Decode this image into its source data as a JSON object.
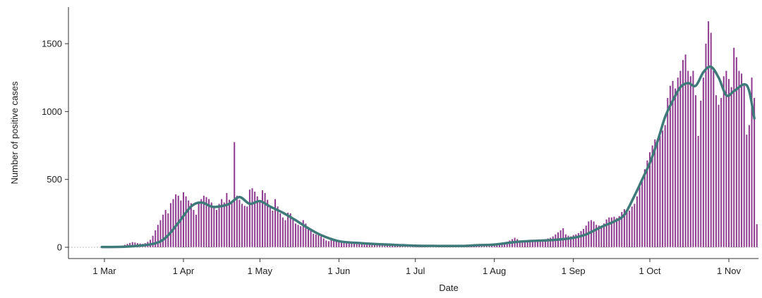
{
  "chart_data": {
    "type": "bar",
    "title": "",
    "xlabel": "Date",
    "ylabel": "Number of positive cases",
    "ylim": [
      0,
      1750
    ],
    "yticks": [
      0,
      500,
      1000,
      1500
    ],
    "ytick_labels": [
      "0",
      "500",
      "1000",
      "1500"
    ],
    "xlim": [
      "2020-02-24",
      "2020-11-12"
    ],
    "xticks": [
      "2020-03-01",
      "2020-04-01",
      "2020-05-01",
      "2020-06-01",
      "2020-07-01",
      "2020-08-01",
      "2020-09-01",
      "2020-10-01",
      "2020-11-01"
    ],
    "xtick_labels": [
      "1 Mar",
      "1 Apr",
      "1 May",
      "1 Jun",
      "1 Jul",
      "1 Aug",
      "1 Sep",
      "1 Oct",
      "1 Nov"
    ],
    "grid": false,
    "bar_color": "#8e3a8f",
    "line_color": "#3f7a7a",
    "series": [
      {
        "kind": "bar",
        "x_start": "2020-02-29",
        "values": [
          2,
          2,
          3,
          2,
          3,
          4,
          6,
          8,
          12,
          18,
          25,
          32,
          38,
          35,
          30,
          28,
          25,
          30,
          40,
          55,
          85,
          125,
          165,
          200,
          240,
          275,
          250,
          325,
          355,
          390,
          380,
          345,
          405,
          375,
          345,
          325,
          275,
          240,
          325,
          355,
          380,
          370,
          355,
          330,
          300,
          275,
          320,
          355,
          330,
          400,
          350,
          325,
          775,
          380,
          350,
          320,
          305,
          300,
          425,
          435,
          410,
          375,
          345,
          420,
          400,
          350,
          305,
          270,
          355,
          300,
          250,
          220,
          200,
          255,
          250,
          215,
          175,
          165,
          155,
          200,
          175,
          150,
          130,
          100,
          95,
          105,
          80,
          65,
          50,
          45,
          70,
          60,
          50,
          40,
          38,
          35,
          32,
          30,
          28,
          28,
          27,
          25,
          24,
          22,
          25,
          22,
          20,
          18,
          20,
          22,
          25,
          24,
          22,
          25,
          22,
          22,
          20,
          18,
          16,
          14,
          12,
          12,
          12,
          11,
          10,
          10,
          10,
          10,
          10,
          10,
          12,
          10,
          10,
          8,
          10,
          12,
          10,
          12,
          10,
          12,
          12,
          14,
          14,
          12,
          12,
          14,
          15,
          14,
          14,
          14,
          15,
          16,
          18,
          20,
          22,
          25,
          28,
          30,
          35,
          40,
          50,
          60,
          70,
          60,
          50,
          45,
          42,
          50,
          48,
          42,
          45,
          45,
          50,
          55,
          60,
          65,
          70,
          80,
          95,
          110,
          125,
          140,
          95,
          85,
          80,
          90,
          95,
          105,
          120,
          135,
          160,
          190,
          200,
          190,
          165,
          160,
          150,
          175,
          205,
          220,
          220,
          225,
          215,
          230,
          260,
          280,
          260,
          270,
          300,
          320,
          375,
          460,
          500,
          575,
          640,
          700,
          750,
          795,
          780,
          820,
          860,
          900,
          1100,
          1190,
          1225,
          1170,
          1250,
          1300,
          1380,
          1420,
          1300,
          1260,
          1300,
          1120,
          820,
          1080,
          1250,
          1500,
          1665,
          1580,
          1300,
          1120,
          1050,
          1100,
          1260,
          1300,
          1240,
          1180,
          1470,
          1400,
          1300,
          1280,
          1190,
          830,
          900,
          1250,
          1100,
          170
        ]
      },
      {
        "kind": "line",
        "x": [
          "2020-02-29",
          "2020-03-10",
          "2020-03-20",
          "2020-03-25",
          "2020-03-30",
          "2020-04-04",
          "2020-04-08",
          "2020-04-12",
          "2020-04-15",
          "2020-04-19",
          "2020-04-23",
          "2020-04-27",
          "2020-05-01",
          "2020-05-05",
          "2020-05-10",
          "2020-05-15",
          "2020-05-20",
          "2020-05-25",
          "2020-06-01",
          "2020-06-10",
          "2020-06-20",
          "2020-07-01",
          "2020-07-10",
          "2020-07-20",
          "2020-07-25",
          "2020-08-01",
          "2020-08-10",
          "2020-08-20",
          "2020-08-25",
          "2020-09-01",
          "2020-09-06",
          "2020-09-12",
          "2020-09-17",
          "2020-09-21",
          "2020-09-25",
          "2020-09-28",
          "2020-10-01",
          "2020-10-04",
          "2020-10-07",
          "2020-10-10",
          "2020-10-13",
          "2020-10-16",
          "2020-10-19",
          "2020-10-22",
          "2020-10-25",
          "2020-10-28",
          "2020-10-31",
          "2020-11-03",
          "2020-11-07",
          "2020-11-09",
          "2020-11-11"
        ],
        "values": [
          2,
          5,
          25,
          70,
          180,
          300,
          330,
          300,
          300,
          320,
          370,
          320,
          340,
          300,
          255,
          200,
          140,
          90,
          45,
          30,
          20,
          12,
          10,
          10,
          15,
          20,
          40,
          50,
          55,
          70,
          95,
          150,
          190,
          240,
          380,
          500,
          620,
          780,
          960,
          1080,
          1180,
          1210,
          1190,
          1290,
          1330,
          1250,
          1120,
          1150,
          1200,
          1150,
          950
        ]
      }
    ]
  }
}
